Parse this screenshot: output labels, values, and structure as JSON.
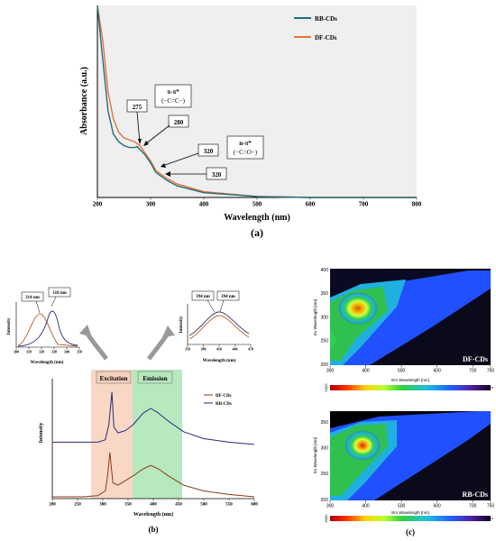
{
  "colors": {
    "df": "#e8703a",
    "rb": "#1f6f7a",
    "rb_b": "#2a2a7a",
    "df_b": "#8a3a1a",
    "excitation_band": "#f6c9b0",
    "emission_band": "#9fe0a8"
  },
  "panel_a": {
    "caption": "(a)",
    "xlabel": "Wavelength  (nm)",
    "ylabel": "Absorbance  (a.u.)",
    "xticks": [
      "200",
      "300",
      "400",
      "500",
      "600",
      "700",
      "800"
    ],
    "legend": [
      "RB-CDs",
      "DF-CDs"
    ],
    "boxes": [
      "275",
      "280",
      "320",
      "320"
    ],
    "annot_pi": [
      "π-π*",
      "(−C=C−)"
    ],
    "annot_n": [
      "n-π*",
      "(−C=O−)"
    ]
  },
  "panel_b": {
    "caption": "(b)",
    "xlabel": "Wavelength (nm)",
    "ylabel": "Intensity",
    "xticks": [
      "200",
      "250",
      "300",
      "350",
      "400",
      "450",
      "500",
      "550",
      "600"
    ],
    "legend": [
      "DF-CDs",
      "RB-CDs"
    ],
    "band_labels": [
      "Excitation",
      "Emission"
    ],
    "inset_left": {
      "boxes": [
        "314 nm",
        "318 nm"
      ],
      "xticks": [
        "300",
        "310",
        "320",
        "330",
        "340",
        "350"
      ],
      "xlabel": "Wavelength (nm)",
      "ylabel": "Intensity"
    },
    "inset_right": {
      "boxes": [
        "394 nm",
        "394 nm"
      ],
      "xticks": [
        "350",
        "380",
        "410",
        "440",
        "470"
      ],
      "xlabel": "Wavelength (nm)",
      "ylabel": "Intensity"
    }
  },
  "panel_c": {
    "caption": "(c)",
    "maps": [
      {
        "label": "DF-CDs",
        "xlabel": "Em Wavelength [nm]",
        "ylabel": "Ex Wavelength [nm]",
        "xticks": [
          "300",
          "400",
          "500",
          "600",
          "700",
          "750"
        ],
        "yticks": [
          "400",
          "350",
          "300",
          "250",
          "200"
        ],
        "colorbar_left": "5000",
        "colorbar_right": "0"
      },
      {
        "label": "RB-CDs",
        "xlabel": "Em Wavelength [nm]",
        "ylabel": "Ex Wavelength [nm]",
        "xticks": [
          "300",
          "400",
          "500",
          "600",
          "700",
          "750"
        ],
        "yticks": [
          "350",
          "300",
          "250",
          "200"
        ],
        "colorbar_left": "6000",
        "colorbar_right": "0"
      }
    ]
  },
  "chart_data": [
    {
      "type": "line",
      "panel": "a",
      "xlabel": "Wavelength  (nm)",
      "ylabel": "Absorbance  (a.u.)",
      "xlim": [
        200,
        800
      ],
      "series": [
        {
          "name": "RB-CDs",
          "x": [
            200,
            210,
            220,
            230,
            240,
            250,
            260,
            270,
            275,
            280,
            290,
            300,
            310,
            320,
            330,
            350,
            400,
            500,
            600,
            800
          ],
          "y": [
            1.0,
            0.72,
            0.45,
            0.33,
            0.29,
            0.27,
            0.26,
            0.26,
            0.265,
            0.25,
            0.22,
            0.18,
            0.13,
            0.11,
            0.09,
            0.06,
            0.025,
            0.005,
            0.0,
            0.0
          ]
        },
        {
          "name": "DF-CDs",
          "x": [
            200,
            210,
            220,
            230,
            240,
            250,
            260,
            270,
            280,
            290,
            300,
            310,
            320,
            330,
            350,
            400,
            500,
            600,
            800
          ],
          "y": [
            1.0,
            0.82,
            0.55,
            0.41,
            0.34,
            0.31,
            0.3,
            0.29,
            0.27,
            0.23,
            0.19,
            0.14,
            0.12,
            0.1,
            0.07,
            0.03,
            0.005,
            0.0,
            0.0
          ]
        }
      ],
      "annotations": [
        "275",
        "280",
        "320",
        "320",
        "π-π* (−C=C−)",
        "n-π* (−C=O−)"
      ]
    },
    {
      "type": "line",
      "panel": "b",
      "xlabel": "Wavelength (nm)",
      "ylabel": "Intensity",
      "xlim": [
        200,
        600
      ],
      "series": [
        {
          "name": "RB-CDs",
          "x": [
            200,
            260,
            290,
            305,
            312,
            318,
            322,
            330,
            345,
            360,
            380,
            395,
            410,
            430,
            460,
            500,
            550,
            600
          ],
          "y": [
            0.47,
            0.47,
            0.47,
            0.49,
            0.62,
            0.9,
            0.6,
            0.55,
            0.57,
            0.62,
            0.72,
            0.76,
            0.72,
            0.65,
            0.56,
            0.5,
            0.47,
            0.45
          ]
        },
        {
          "name": "DF-CDs",
          "x": [
            200,
            260,
            290,
            305,
            310,
            314,
            320,
            330,
            345,
            360,
            380,
            395,
            410,
            430,
            460,
            500,
            550,
            600
          ],
          "y": [
            0.0,
            0.0,
            0.01,
            0.05,
            0.2,
            0.38,
            0.12,
            0.1,
            0.14,
            0.18,
            0.24,
            0.27,
            0.24,
            0.18,
            0.1,
            0.05,
            0.02,
            0.0
          ]
        }
      ],
      "bands": [
        {
          "label": "Excitation",
          "range": [
            280,
            360
          ]
        },
        {
          "label": "Emission",
          "range": [
            360,
            460
          ]
        }
      ]
    },
    {
      "type": "heatmap",
      "panel": "c",
      "maps": [
        "DF-CDs",
        "RB-CDs"
      ],
      "xlim": [
        300,
        750
      ],
      "ylim": [
        200,
        400
      ]
    }
  ]
}
